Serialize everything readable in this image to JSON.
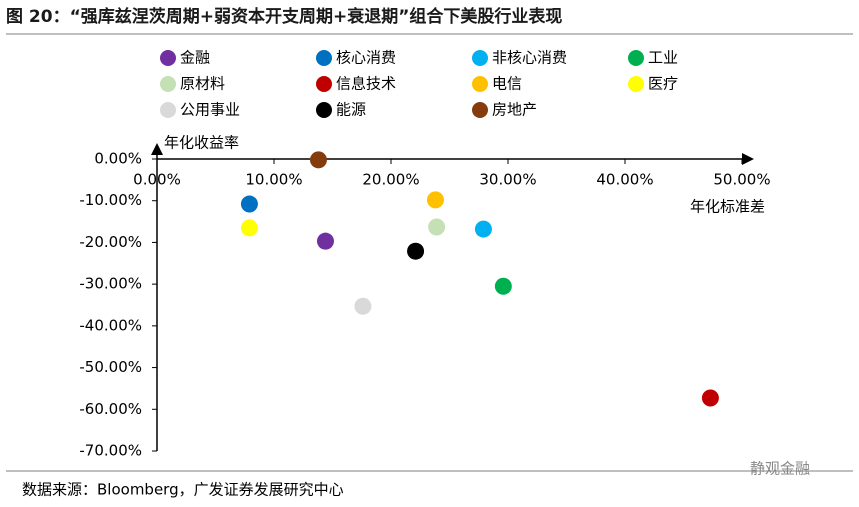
{
  "chart_data": {
    "type": "scatter",
    "title": "图 20：“强库兹涅茨周期+弱资本开支周期+衰退期”组合下美股行业表现",
    "source": "数据来源：Bloomberg，广发证券发展研究中心",
    "watermark": "静观金融",
    "x_label": "年化标准差",
    "y_label": "年化收益率",
    "xlim": [
      0,
      50
    ],
    "ylim": [
      -70,
      0
    ],
    "xticks": [
      {
        "value": 0,
        "label": "0.00%"
      },
      {
        "value": 10,
        "label": "10.00%"
      },
      {
        "value": 20,
        "label": "20.00%"
      },
      {
        "value": 30,
        "label": "30.00%"
      },
      {
        "value": 40,
        "label": "40.00%"
      },
      {
        "value": 50,
        "label": "50.00%"
      }
    ],
    "yticks": [
      {
        "value": 0,
        "label": "0.00%"
      },
      {
        "value": -10,
        "label": "-10.00%"
      },
      {
        "value": -20,
        "label": "-20.00%"
      },
      {
        "value": -30,
        "label": "-30.00%"
      },
      {
        "value": -40,
        "label": "-40.00%"
      },
      {
        "value": -50,
        "label": "-50.00%"
      },
      {
        "value": -60,
        "label": "-60.00%"
      },
      {
        "value": -70,
        "label": "-70.00%"
      }
    ],
    "series": [
      {
        "name": "金融",
        "color": "#7030a0",
        "x": [
          14.4
        ],
        "values": [
          -19.7
        ]
      },
      {
        "name": "核心消费",
        "color": "#0070c0",
        "x": [
          7.9
        ],
        "values": [
          -10.8
        ]
      },
      {
        "name": "非核心消费",
        "color": "#00b0f0",
        "x": [
          27.9
        ],
        "values": [
          -16.8
        ]
      },
      {
        "name": "工业",
        "color": "#00b050",
        "x": [
          29.6
        ],
        "values": [
          -30.5
        ]
      },
      {
        "name": "原材料",
        "color": "#c5e0b4",
        "x": [
          23.9
        ],
        "values": [
          -16.3
        ]
      },
      {
        "name": "信息技术",
        "color": "#c00000",
        "x": [
          47.3
        ],
        "values": [
          -57.3
        ]
      },
      {
        "name": "电信",
        "color": "#ffc000",
        "x": [
          23.8
        ],
        "values": [
          -9.8
        ]
      },
      {
        "name": "医疗",
        "color": "#ffff00",
        "x": [
          7.9
        ],
        "values": [
          -16.5
        ]
      },
      {
        "name": "公用事业",
        "color": "#d9d9d9",
        "x": [
          17.6
        ],
        "values": [
          -35.3
        ]
      },
      {
        "name": "能源",
        "color": "#000000",
        "x": [
          22.1
        ],
        "values": [
          -22.1
        ]
      },
      {
        "name": "房地产",
        "color": "#843c0c",
        "x": [
          13.8
        ],
        "values": [
          -0.2
        ]
      }
    ]
  }
}
